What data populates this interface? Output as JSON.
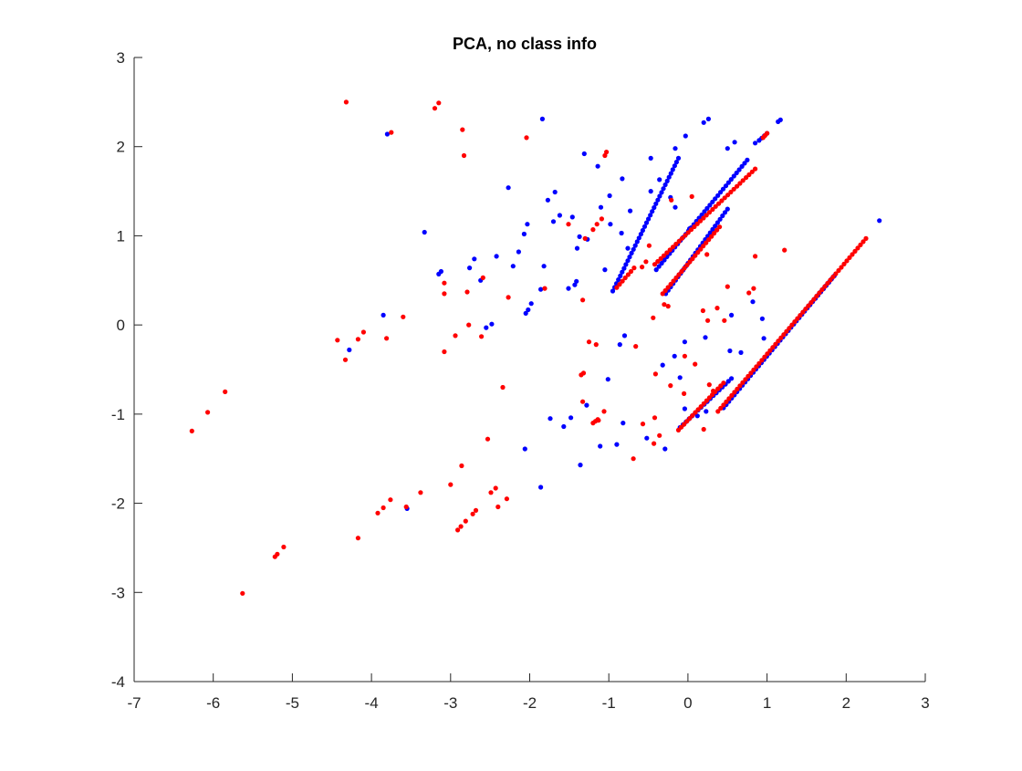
{
  "chart_data": {
    "type": "scatter",
    "title": "PCA, no class info",
    "xlabel": "",
    "ylabel": "",
    "xlim": [
      -7,
      3
    ],
    "ylim": [
      -4,
      3
    ],
    "xticks": [
      -7,
      -6,
      -5,
      -4,
      -3,
      -2,
      -1,
      0,
      1,
      2,
      3
    ],
    "yticks": [
      -4,
      -3,
      -2,
      -1,
      0,
      1,
      2,
      3
    ],
    "grid": false,
    "legend": "none",
    "series": [
      {
        "color": "#0000ff",
        "points": [
          [
            -3.8,
            2.14
          ],
          [
            -1.84,
            2.31
          ],
          [
            -1.31,
            1.92
          ],
          [
            -1.14,
            1.78
          ],
          [
            -0.83,
            1.64
          ],
          [
            -0.73,
            1.28
          ],
          [
            -0.47,
            1.87
          ],
          [
            -0.36,
            1.63
          ],
          [
            -0.16,
            1.98
          ],
          [
            -0.03,
            2.12
          ],
          [
            0.02,
            1.08
          ],
          [
            0.2,
            2.27
          ],
          [
            0.26,
            2.31
          ],
          [
            0.5,
            1.98
          ],
          [
            0.59,
            2.05
          ],
          [
            0.85,
            2.04
          ],
          [
            1.14,
            2.28
          ],
          [
            1.17,
            2.3
          ],
          [
            2.42,
            1.17
          ],
          [
            -3.33,
            1.04
          ],
          [
            -2.27,
            1.54
          ],
          [
            -2.03,
            1.13
          ],
          [
            -1.77,
            1.4
          ],
          [
            -1.68,
            1.49
          ],
          [
            -1.7,
            1.16
          ],
          [
            -1.62,
            1.23
          ],
          [
            -1.46,
            1.21
          ],
          [
            -1.4,
            0.86
          ],
          [
            -1.37,
            0.99
          ],
          [
            -1.27,
            0.96
          ],
          [
            -1.1,
            1.32
          ],
          [
            -0.99,
            1.45
          ],
          [
            -0.98,
            1.13
          ],
          [
            -0.84,
            1.03
          ],
          [
            -1.05,
            0.62
          ],
          [
            -0.76,
            0.86
          ],
          [
            -0.47,
            1.5
          ],
          [
            -0.22,
            1.43
          ],
          [
            -0.16,
            1.32
          ],
          [
            -3.12,
            0.6
          ],
          [
            -3.15,
            0.57
          ],
          [
            -2.76,
            0.64
          ],
          [
            -2.7,
            0.74
          ],
          [
            -2.62,
            0.5
          ],
          [
            -2.42,
            0.77
          ],
          [
            -2.21,
            0.66
          ],
          [
            -2.14,
            0.82
          ],
          [
            -2.07,
            1.02
          ],
          [
            -1.82,
            0.66
          ],
          [
            -1.86,
            0.4
          ],
          [
            -2.02,
            0.17
          ],
          [
            -2.05,
            0.13
          ],
          [
            -1.98,
            0.24
          ],
          [
            -1.51,
            0.41
          ],
          [
            -1.43,
            0.45
          ],
          [
            -1.41,
            0.49
          ],
          [
            -2.55,
            -0.03
          ],
          [
            -2.48,
            0.01
          ],
          [
            -3.85,
            0.11
          ],
          [
            -4.28,
            -0.28
          ],
          [
            -0.86,
            -0.22
          ],
          [
            -0.8,
            -0.12
          ],
          [
            -0.32,
            -0.45
          ],
          [
            -0.17,
            -0.35
          ],
          [
            -0.1,
            -0.59
          ],
          [
            -0.04,
            -0.19
          ],
          [
            0.22,
            -0.14
          ],
          [
            0.53,
            -0.29
          ],
          [
            0.67,
            -0.31
          ],
          [
            0.96,
            -0.15
          ],
          [
            0.94,
            0.07
          ],
          [
            0.55,
            0.11
          ],
          [
            0.82,
            0.26
          ],
          [
            -1.01,
            -0.61
          ],
          [
            -1.28,
            -0.9
          ],
          [
            -1.48,
            -1.04
          ],
          [
            -1.57,
            -1.14
          ],
          [
            -1.74,
            -1.05
          ],
          [
            -0.82,
            -1.1
          ],
          [
            -0.9,
            -1.34
          ],
          [
            -0.52,
            -1.27
          ],
          [
            -0.29,
            -1.39
          ],
          [
            -0.04,
            -0.94
          ],
          [
            0.12,
            -1.02
          ],
          [
            0.23,
            -0.97
          ],
          [
            -2.06,
            -1.39
          ],
          [
            -1.86,
            -1.82
          ],
          [
            -3.55,
            -2.06
          ],
          [
            -1.36,
            -1.57
          ],
          [
            -1.11,
            -1.36
          ]
        ],
        "lines": [
          [
            [
              -0.95,
              0.38
            ],
            [
              -0.12,
              1.87
            ]
          ],
          [
            [
              -0.4,
              0.62
            ],
            [
              0.75,
              1.85
            ]
          ],
          [
            [
              -0.28,
              0.35
            ],
            [
              0.5,
              1.3
            ]
          ],
          [
            [
              0.9,
              2.07
            ],
            [
              1.0,
              2.15
            ]
          ],
          [
            [
              -0.1,
              -1.15
            ],
            [
              0.55,
              -0.6
            ]
          ],
          [
            [
              0.45,
              -0.93
            ],
            [
              1.85,
              0.55
            ]
          ]
        ]
      },
      {
        "color": "#ff0000",
        "points": [
          [
            -4.32,
            2.5
          ],
          [
            -3.2,
            2.43
          ],
          [
            -3.15,
            2.49
          ],
          [
            -2.85,
            2.19
          ],
          [
            -2.83,
            1.9
          ],
          [
            -2.04,
            2.1
          ],
          [
            -1.03,
            1.94
          ],
          [
            -1.05,
            1.9
          ],
          [
            -3.75,
            2.16
          ],
          [
            -1.51,
            1.13
          ],
          [
            -1.3,
            0.97
          ],
          [
            -1.2,
            1.07
          ],
          [
            -1.15,
            1.13
          ],
          [
            -1.09,
            1.19
          ],
          [
            -0.53,
            0.71
          ],
          [
            -0.49,
            0.89
          ],
          [
            -0.21,
            1.4
          ],
          [
            0.05,
            1.44
          ],
          [
            0.24,
            0.79
          ],
          [
            0.85,
            0.77
          ],
          [
            1.22,
            0.84
          ],
          [
            -3.08,
            0.47
          ],
          [
            -3.08,
            0.35
          ],
          [
            -2.79,
            0.37
          ],
          [
            -2.59,
            0.53
          ],
          [
            -2.27,
            0.31
          ],
          [
            -1.81,
            0.41
          ],
          [
            -1.33,
            0.28
          ],
          [
            -0.68,
            0.64
          ],
          [
            -0.58,
            0.65
          ],
          [
            -0.3,
            0.23
          ],
          [
            -4.1,
            -0.08
          ],
          [
            -4.17,
            -0.16
          ],
          [
            -4.43,
            -0.17
          ],
          [
            -4.33,
            -0.39
          ],
          [
            -3.81,
            -0.15
          ],
          [
            -3.6,
            0.09
          ],
          [
            -2.94,
            -0.12
          ],
          [
            -3.08,
            -0.3
          ],
          [
            -2.77,
            0.0
          ],
          [
            -2.61,
            -0.13
          ],
          [
            -2.34,
            -0.7
          ],
          [
            -0.44,
            0.08
          ],
          [
            -0.25,
            0.21
          ],
          [
            0.19,
            0.16
          ],
          [
            0.25,
            0.05
          ],
          [
            0.37,
            0.19
          ],
          [
            0.46,
            0.05
          ],
          [
            0.5,
            0.43
          ],
          [
            0.77,
            0.36
          ],
          [
            0.83,
            0.41
          ],
          [
            -0.04,
            -0.35
          ],
          [
            0.09,
            -0.44
          ],
          [
            -0.41,
            -0.55
          ],
          [
            -0.22,
            -0.68
          ],
          [
            -0.05,
            -0.77
          ],
          [
            0.27,
            -0.67
          ],
          [
            0.32,
            -0.74
          ],
          [
            -1.35,
            -0.56
          ],
          [
            -1.32,
            -0.54
          ],
          [
            -1.33,
            -0.86
          ],
          [
            -1.16,
            -0.22
          ],
          [
            -1.25,
            -0.19
          ],
          [
            -0.66,
            -0.24
          ],
          [
            -1.14,
            -1.06
          ],
          [
            -1.06,
            -0.97
          ],
          [
            -1.17,
            -1.08
          ],
          [
            -1.13,
            -1.07
          ],
          [
            -1.2,
            -1.1
          ],
          [
            -0.69,
            -1.5
          ],
          [
            -0.43,
            -1.33
          ],
          [
            -0.36,
            -1.24
          ],
          [
            -0.57,
            -1.11
          ],
          [
            -0.42,
            -1.04
          ],
          [
            0.2,
            -1.17
          ],
          [
            -6.27,
            -1.19
          ],
          [
            -6.07,
            -0.98
          ],
          [
            -5.85,
            -0.75
          ],
          [
            -2.86,
            -1.58
          ],
          [
            -3.0,
            -1.79
          ],
          [
            -2.53,
            -1.28
          ],
          [
            -2.43,
            -1.83
          ],
          [
            -2.49,
            -1.88
          ],
          [
            -2.4,
            -2.04
          ],
          [
            -2.29,
            -1.95
          ],
          [
            -3.92,
            -2.11
          ],
          [
            -3.85,
            -2.05
          ],
          [
            -3.76,
            -1.96
          ],
          [
            -3.38,
            -1.88
          ],
          [
            -3.56,
            -2.04
          ],
          [
            -2.91,
            -2.3
          ],
          [
            -2.87,
            -2.26
          ],
          [
            -2.81,
            -2.2
          ],
          [
            -2.72,
            -2.12
          ],
          [
            -2.68,
            -2.08
          ],
          [
            -4.17,
            -2.39
          ],
          [
            -5.22,
            -2.6
          ],
          [
            -5.19,
            -2.57
          ],
          [
            -5.11,
            -2.49
          ],
          [
            -5.63,
            -3.01
          ]
        ],
        "lines": [
          [
            [
              -0.9,
              0.42
            ],
            [
              -0.72,
              0.6
            ]
          ],
          [
            [
              -0.42,
              0.68
            ],
            [
              0.85,
              1.75
            ]
          ],
          [
            [
              -0.32,
              0.35
            ],
            [
              0.4,
              1.1
            ]
          ],
          [
            [
              0.95,
              2.1
            ],
            [
              1.0,
              2.15
            ]
          ],
          [
            [
              -0.12,
              -1.18
            ],
            [
              0.45,
              -0.65
            ]
          ],
          [
            [
              0.38,
              -0.97
            ],
            [
              2.25,
              0.97
            ]
          ]
        ]
      }
    ]
  }
}
